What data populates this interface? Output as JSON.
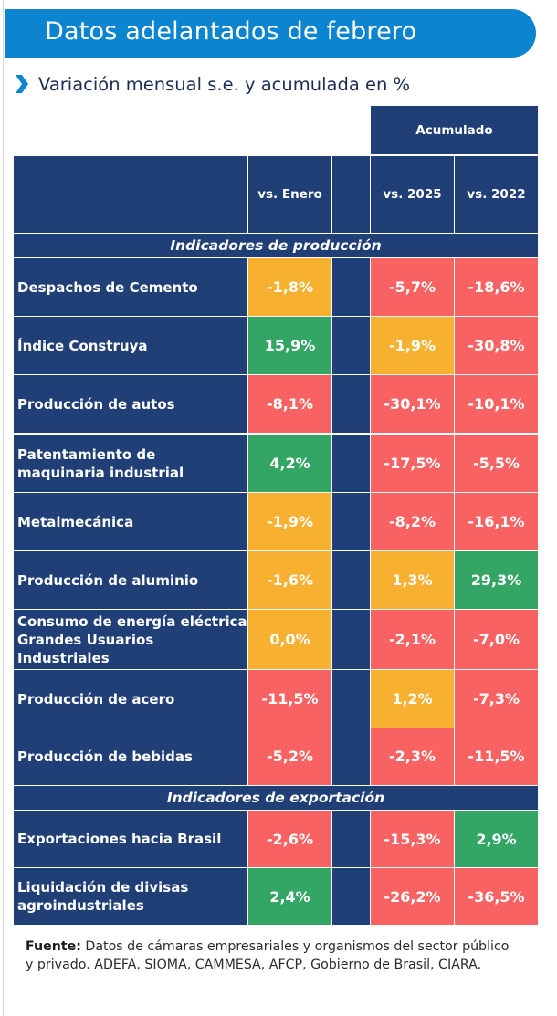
{
  "header": {
    "title": "Datos adelantados de febrero",
    "subtitle": "Variación mensual s.e. y acumulada en %",
    "subtitle_icon": "chevron-right-icon"
  },
  "colors": {
    "banner": "#0c84d0",
    "navy": "#203f77",
    "negative": "#f96262",
    "neutral": "#f7b030",
    "positive": "#33a565"
  },
  "table": {
    "group_header": "Acumulado",
    "columns": [
      "vs. Enero",
      "",
      "vs. 2025",
      "vs. 2022"
    ],
    "sections": [
      {
        "title": "Indicadores de producción",
        "rows": [
          {
            "label": "Despachos de Cemento",
            "vs_enero": "-1,8%",
            "vs_2025": "-5,7%",
            "vs_2022": "-18,6%",
            "c": [
              "orange",
              "red",
              "red"
            ]
          },
          {
            "label": "Índice Construya",
            "vs_enero": "15,9%",
            "vs_2025": "-1,9%",
            "vs_2022": "-30,8%",
            "c": [
              "green",
              "orange",
              "red"
            ]
          },
          {
            "label": "Producción de autos",
            "vs_enero": "-8,1%",
            "vs_2025": "-30,1%",
            "vs_2022": "-10,1%",
            "c": [
              "red",
              "red",
              "red"
            ]
          },
          {
            "label": "Patentamiento de maquinaria industrial",
            "vs_enero": "4,2%",
            "vs_2025": "-17,5%",
            "vs_2022": "-5,5%",
            "c": [
              "green",
              "red",
              "red"
            ]
          },
          {
            "label": "Metalmecánica",
            "vs_enero": "-1,9%",
            "vs_2025": "-8,2%",
            "vs_2022": "-16,1%",
            "c": [
              "orange",
              "red",
              "red"
            ]
          },
          {
            "label": "Producción de aluminio",
            "vs_enero": "-1,6%",
            "vs_2025": "1,3%",
            "vs_2022": "29,3%",
            "c": [
              "orange",
              "orange",
              "green"
            ]
          },
          {
            "label": "Consumo de energía eléctrica Grandes Usuarios Industriales",
            "vs_enero": "0,0%",
            "vs_2025": "-2,1%",
            "vs_2022": "-7,0%",
            "c": [
              "orange",
              "red",
              "red"
            ]
          },
          {
            "label": "Producción de acero",
            "vs_enero": "-11,5%",
            "vs_2025": "1,2%",
            "vs_2022": "-7,3%",
            "c": [
              "red",
              "orange",
              "red"
            ]
          },
          {
            "label": "Producción de bebidas",
            "vs_enero": "-5,2%",
            "vs_2025": "-2,3%",
            "vs_2022": "-11,5%",
            "c": [
              "red",
              "red",
              "red"
            ]
          }
        ]
      },
      {
        "title": "Indicadores de exportación",
        "rows": [
          {
            "label": "Exportaciones hacia Brasil",
            "vs_enero": "-2,6%",
            "vs_2025": "-15,3%",
            "vs_2022": "2,9%",
            "c": [
              "red",
              "red",
              "green"
            ]
          },
          {
            "label": "Liquidación de divisas agroindustriales",
            "vs_enero": "2,4%",
            "vs_2025": "-26,2%",
            "vs_2022": "-36,5%",
            "c": [
              "green",
              "red",
              "red"
            ]
          }
        ]
      }
    ]
  },
  "footer": {
    "source_label": "Fuente:",
    "source_text": " Datos de cámaras empresariales y organismos del sector público y privado. ADEFA, SIOMA, CAMMESA, AFCP, Gobierno de Brasil, CIARA."
  }
}
